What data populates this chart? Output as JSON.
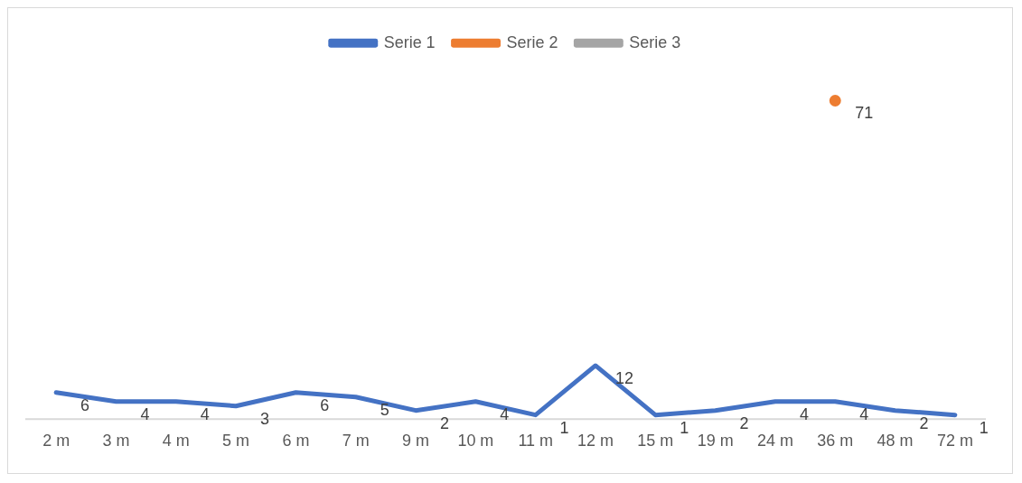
{
  "chart_data": {
    "type": "line",
    "categories": [
      "2 m",
      "3 m",
      "4 m",
      "5 m",
      "6 m",
      "7 m",
      "9 m",
      "10 m",
      "11 m",
      "12 m",
      "15 m",
      "19 m",
      "24 m",
      "36 m",
      "48 m",
      "72 m"
    ],
    "series": [
      {
        "name": "Serie 1",
        "color": "#4472c4",
        "values": [
          6,
          4,
          4,
          3,
          6,
          5,
          2,
          4,
          1,
          12,
          1,
          2,
          4,
          4,
          2,
          1
        ]
      },
      {
        "name": "Serie 2",
        "color": "#ed7d31",
        "marker": "circle",
        "values": [
          null,
          null,
          null,
          null,
          null,
          null,
          null,
          null,
          null,
          null,
          null,
          null,
          null,
          71,
          null,
          null
        ]
      },
      {
        "name": "Serie 3",
        "color": "#a5a5a5",
        "values": [
          null,
          null,
          null,
          null,
          null,
          null,
          null,
          null,
          null,
          null,
          null,
          null,
          null,
          null,
          null,
          null
        ]
      }
    ],
    "tick_labels": "x",
    "grid": false,
    "legend": "top",
    "marker": "none",
    "line_style": "solid",
    "data_labels": true
  }
}
